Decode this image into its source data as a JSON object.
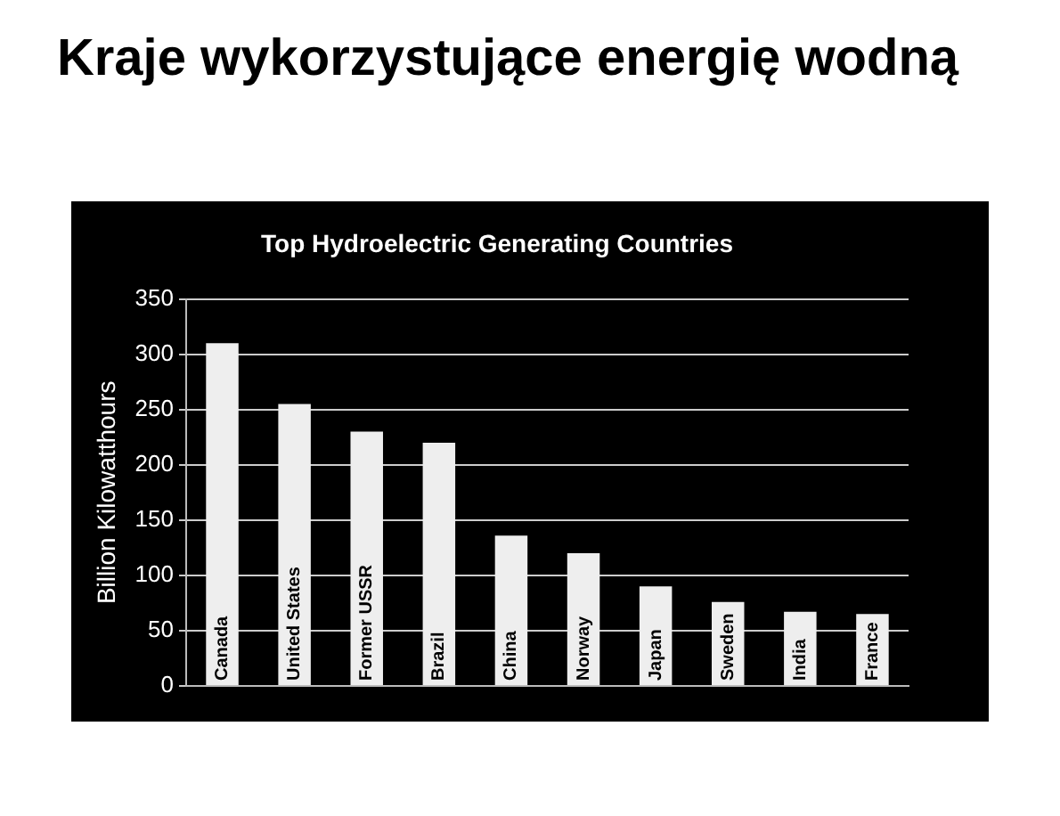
{
  "chart_data": {
    "type": "bar",
    "title": "Kraje wykorzystujące energię wodną",
    "subtitle": "Top Hydroelectric Generating Countries",
    "ylabel": "Billion Kilowatthours",
    "categories": [
      "Canada",
      "United States",
      "Former USSR",
      "Brazil",
      "China",
      "Norway",
      "Japan",
      "Sweden",
      "India",
      "France"
    ],
    "values": [
      310,
      255,
      230,
      220,
      136,
      120,
      90,
      76,
      67,
      65
    ],
    "color": "#eeeeee",
    "ylim": [
      0,
      350
    ],
    "yticks": [
      0,
      50,
      100,
      150,
      200,
      250,
      300,
      350
    ],
    "grid": "y",
    "legend": false
  }
}
